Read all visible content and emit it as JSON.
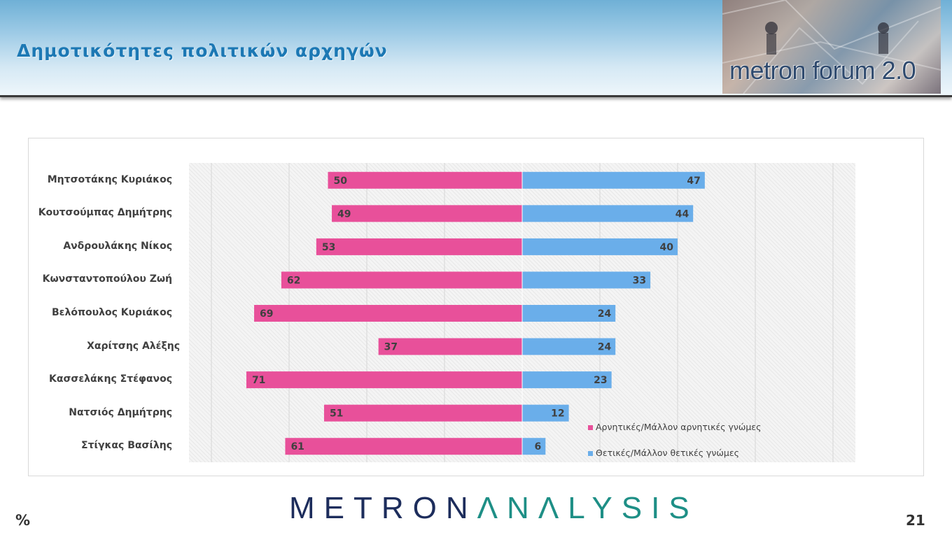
{
  "header": {
    "title": "Δημοτικότητες πολιτικών αρχηγών",
    "logo_text": "metron forum 2.0"
  },
  "footer": {
    "brand_part1": "METRON",
    "brand_part2": "ΛNΛLYSIS",
    "unit": "%",
    "page_number": "21"
  },
  "colors": {
    "negative": "#e8509a",
    "positive": "#6aaeea"
  },
  "chart_data": {
    "type": "bar",
    "orientation": "horizontal-diverging",
    "categories": [
      "Μητσοτάκης Κυριάκος",
      "Κουτσούμπας Δημήτρης",
      "Ανδρουλάκης Νίκος",
      "Κωνσταντοπούλου Ζωή",
      "Βελόπουλος Κυριάκος",
      "Χαρίτσης Αλέξης",
      "Κασσελάκης Στέφανος",
      "Νατσιός Δημήτρης",
      "Στίγκας Βασίλης"
    ],
    "series": [
      {
        "name": "Αρνητικές/Μάλλον αρνητικές γνώμες",
        "values": [
          50,
          49,
          53,
          62,
          69,
          37,
          71,
          51,
          61
        ]
      },
      {
        "name": "Θετικές/Μάλλον θετικές γνώμες",
        "values": [
          47,
          44,
          40,
          33,
          24,
          24,
          23,
          12,
          6
        ]
      }
    ],
    "xlim": [
      -85,
      85
    ],
    "grid": true,
    "legend_position": "bottom-right"
  }
}
